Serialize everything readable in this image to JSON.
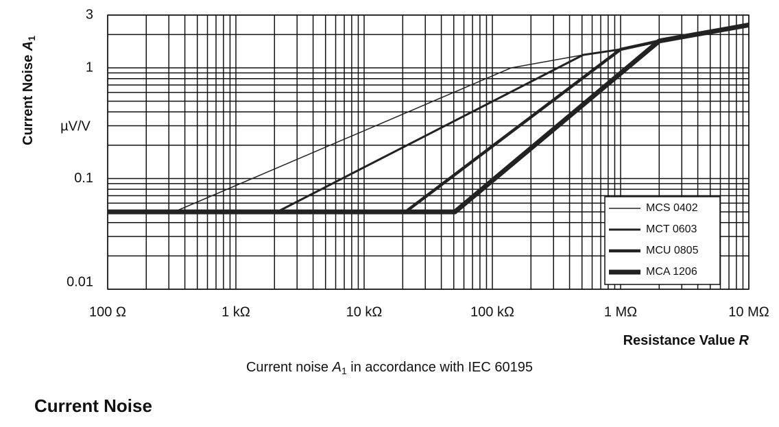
{
  "chart_data": {
    "type": "line",
    "y_title": [
      "Current Noise ",
      "A",
      "1"
    ],
    "y_unit": "µV/V",
    "x_title": [
      "Resistance Value ",
      "R"
    ],
    "caption": [
      "Current noise ",
      "A",
      "1",
      " in accordance with IEC 60195"
    ],
    "log_x": true,
    "log_y": true,
    "grid": true,
    "legend_position": "lower right",
    "xlim": [
      100,
      10000000
    ],
    "xticks": [
      {
        "value": 100,
        "label": "100 Ω"
      },
      {
        "value": 1000,
        "label": "1 kΩ"
      },
      {
        "value": 10000,
        "label": "10 kΩ"
      },
      {
        "value": 100000,
        "label": "100 kΩ"
      },
      {
        "value": 1000000,
        "label": "1 MΩ"
      },
      {
        "value": 10000000,
        "label": "10 MΩ"
      }
    ],
    "x_minor_ticks": [
      200,
      300,
      400,
      500,
      600,
      700,
      800,
      900,
      2000,
      3000,
      4000,
      5000,
      6000,
      7000,
      8000,
      9000,
      20000,
      30000,
      40000,
      50000,
      60000,
      70000,
      80000,
      90000,
      200000,
      300000,
      400000,
      500000,
      600000,
      700000,
      800000,
      900000,
      2000000,
      3000000,
      4000000,
      5000000,
      6000000,
      7000000,
      8000000,
      9000000
    ],
    "ylim": [
      0.01,
      3
    ],
    "yticks": [
      0.01,
      0.1,
      1,
      3
    ],
    "y_minor_ticks": [
      0.02,
      0.03,
      0.04,
      0.05,
      0.06,
      0.07,
      0.08,
      0.09,
      0.2,
      0.3,
      0.4,
      0.5,
      0.6,
      0.7,
      0.8,
      0.9,
      2
    ],
    "series": [
      {
        "name": "MCS 0402",
        "color": "#222222",
        "linewidth": 1.5,
        "x": [
          100,
          330,
          140000,
          510000,
          1000000,
          2000000,
          10000000
        ],
        "values": [
          0.05,
          0.05,
          1,
          1.31,
          1.47,
          1.75,
          2.44
        ]
      },
      {
        "name": "MCT 0603",
        "color": "#222222",
        "linewidth": 3,
        "x": [
          100,
          2100,
          510000,
          1000000,
          2000000,
          10000000
        ],
        "values": [
          0.05,
          0.05,
          1.31,
          1.47,
          1.75,
          2.44
        ]
      },
      {
        "name": "MCU 0805",
        "color": "#222222",
        "linewidth": 4.5,
        "x": [
          100,
          21000,
          1000000,
          2000000,
          10000000
        ],
        "values": [
          0.05,
          0.05,
          1.47,
          1.75,
          2.44
        ]
      },
      {
        "name": "MCA 1206",
        "color": "#222222",
        "linewidth": 7,
        "x": [
          100,
          51000,
          2000000,
          10000000
        ],
        "values": [
          0.05,
          0.05,
          1.75,
          2.44
        ]
      }
    ]
  },
  "section_title": "Current Noise"
}
